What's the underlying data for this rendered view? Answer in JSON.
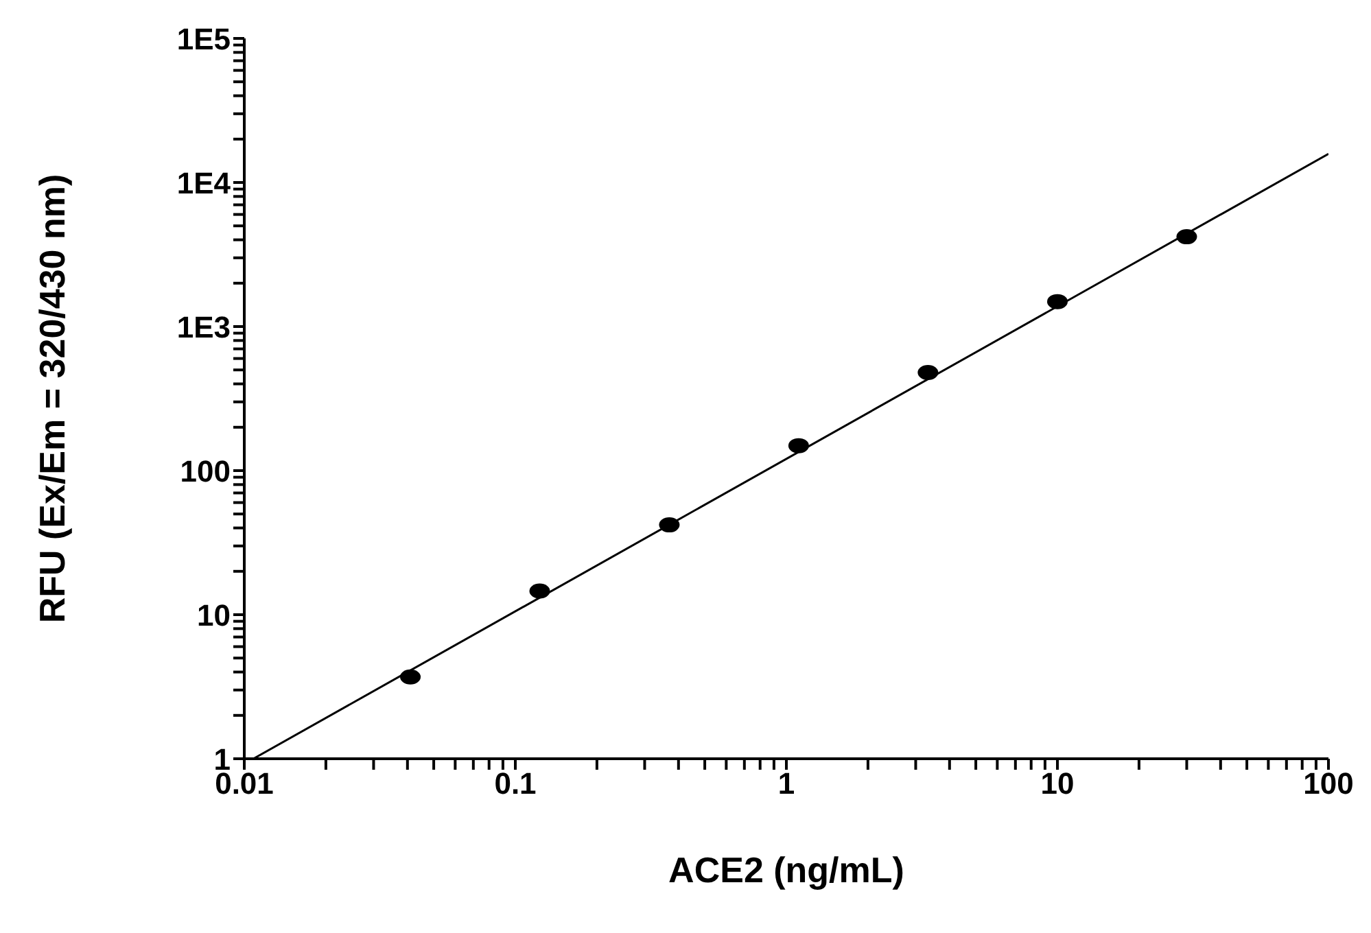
{
  "chart_data": {
    "type": "scatter",
    "xlabel": "ACE2 (ng/mL)",
    "ylabel": "RFU (Ex/Em = 320/430 nm)",
    "log": "xy",
    "marker": "circle",
    "xlim": [
      0.01,
      100
    ],
    "ylim": [
      1,
      100000
    ],
    "xticks": [
      0.01,
      {
        "value": 0.02,
        "label": null
      },
      {
        "value": 0.03,
        "label": null
      },
      {
        "value": 0.04,
        "label": null
      },
      {
        "value": 0.05,
        "label": null
      },
      {
        "value": 0.06,
        "label": null
      },
      {
        "value": 0.07,
        "label": null
      },
      {
        "value": 0.08,
        "label": null
      },
      {
        "value": 0.09,
        "label": null
      },
      0.1,
      {
        "value": 0.2,
        "label": null
      },
      {
        "value": 0.3,
        "label": null
      },
      {
        "value": 0.4,
        "label": null
      },
      {
        "value": 0.5,
        "label": null
      },
      {
        "value": 0.6,
        "label": null
      },
      {
        "value": 0.7,
        "label": null
      },
      {
        "value": 0.8,
        "label": null
      },
      {
        "value": 0.9,
        "label": null
      },
      1,
      {
        "value": 2,
        "label": null
      },
      {
        "value": 3,
        "label": null
      },
      {
        "value": 4,
        "label": null
      },
      {
        "value": 5,
        "label": null
      },
      {
        "value": 6,
        "label": null
      },
      {
        "value": 7,
        "label": null
      },
      {
        "value": 8,
        "label": null
      },
      {
        "value": 9,
        "label": null
      },
      10,
      {
        "value": 20,
        "label": null
      },
      {
        "value": 30,
        "label": null
      },
      {
        "value": 40,
        "label": null
      },
      {
        "value": 50,
        "label": null
      },
      {
        "value": 60,
        "label": null
      },
      {
        "value": 70,
        "label": null
      },
      {
        "value": 80,
        "label": null
      },
      {
        "value": 90,
        "label": null
      },
      100
    ],
    "yticks": [
      1,
      {
        "value": 2,
        "label": null
      },
      {
        "value": 3,
        "label": null
      },
      {
        "value": 4,
        "label": null
      },
      {
        "value": 5,
        "label": null
      },
      {
        "value": 6,
        "label": null
      },
      {
        "value": 7,
        "label": null
      },
      {
        "value": 8,
        "label": null
      },
      {
        "value": 9,
        "label": null
      },
      10,
      {
        "value": 20,
        "label": null
      },
      {
        "value": 30,
        "label": null
      },
      {
        "value": 40,
        "label": null
      },
      {
        "value": 50,
        "label": null
      },
      {
        "value": 60,
        "label": null
      },
      {
        "value": 70,
        "label": null
      },
      {
        "value": 80,
        "label": null
      },
      {
        "value": 90,
        "label": null
      },
      100,
      {
        "value": 200,
        "label": null
      },
      {
        "value": 300,
        "label": null
      },
      {
        "value": 400,
        "label": null
      },
      {
        "value": 500,
        "label": null
      },
      {
        "value": 600,
        "label": null
      },
      {
        "value": 700,
        "label": null
      },
      {
        "value": 800,
        "label": null
      },
      {
        "value": 900,
        "label": null
      },
      {
        "value": 1000,
        "label": "1E3"
      },
      {
        "value": 2000,
        "label": null
      },
      {
        "value": 3000,
        "label": null
      },
      {
        "value": 4000,
        "label": null
      },
      {
        "value": 5000,
        "label": null
      },
      {
        "value": 6000,
        "label": null
      },
      {
        "value": 7000,
        "label": null
      },
      {
        "value": 8000,
        "label": null
      },
      {
        "value": 9000,
        "label": null
      },
      {
        "value": 10000,
        "label": "1E4"
      },
      {
        "value": 20000,
        "label": null
      },
      {
        "value": 30000,
        "label": null
      },
      {
        "value": 40000,
        "label": null
      },
      {
        "value": 50000,
        "label": null
      },
      {
        "value": 60000,
        "label": null
      },
      {
        "value": 70000,
        "label": null
      },
      {
        "value": 80000,
        "label": null
      },
      {
        "value": 90000,
        "label": null
      },
      {
        "value": 100000,
        "label": "1E5"
      }
    ],
    "series": [
      {
        "color": "#000000",
        "x": [
          0.041,
          0.123,
          0.37,
          1.11,
          3.33,
          10,
          30
        ],
        "values": [
          3.7,
          14.6,
          42,
          149,
          480,
          1490,
          4200
        ]
      },
      {
        "type": "line",
        "color": "#000000",
        "marker": "none",
        "line_style": "solid",
        "x": [
          0.0108,
          100
        ],
        "values": [
          1,
          15800
        ]
      }
    ]
  }
}
